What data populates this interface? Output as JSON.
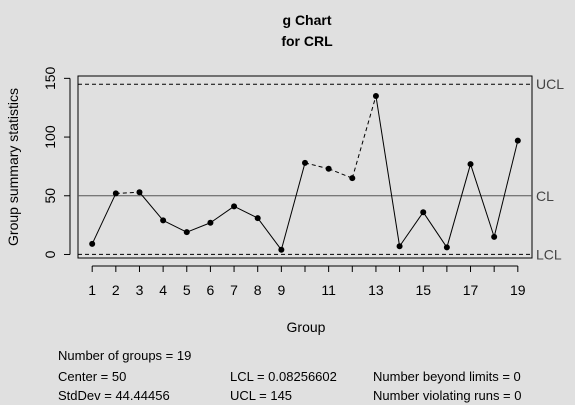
{
  "chart_data": {
    "type": "line",
    "chart_kind": "g Chart",
    "title_line1": "g Chart",
    "title_line2": "for CRL",
    "xlabel": "Group",
    "ylabel": "Group summary statistics",
    "ylim": [
      -3,
      152
    ],
    "xlim": [
      0.4,
      19.6
    ],
    "yticks": [
      0,
      50,
      100,
      150
    ],
    "xticks": [
      1,
      2,
      3,
      4,
      5,
      6,
      7,
      8,
      9,
      11,
      13,
      15,
      17,
      19
    ],
    "x": [
      1,
      2,
      3,
      4,
      5,
      6,
      7,
      8,
      9,
      10,
      11,
      12,
      13,
      14,
      15,
      16,
      17,
      18,
      19
    ],
    "values": [
      9,
      52,
      53,
      29,
      19,
      27,
      41,
      31,
      4,
      78,
      73,
      65,
      135,
      7,
      36,
      6,
      77,
      15,
      97
    ],
    "center": 50,
    "lcl": 0.08256602,
    "ucl": 145,
    "center_label": "CL",
    "lcl_label": "LCL",
    "ucl_label": "UCL"
  },
  "stats": {
    "groups_text": "Number of groups = 19",
    "center_text": "Center = 50",
    "stddev_text": "StdDev = 44.44456",
    "lcl_text": "LCL = 0.08256602",
    "ucl_text": "UCL = 145",
    "beyond_text": "Number beyond limits = 0",
    "violating_text": "Number violating runs = 0"
  }
}
